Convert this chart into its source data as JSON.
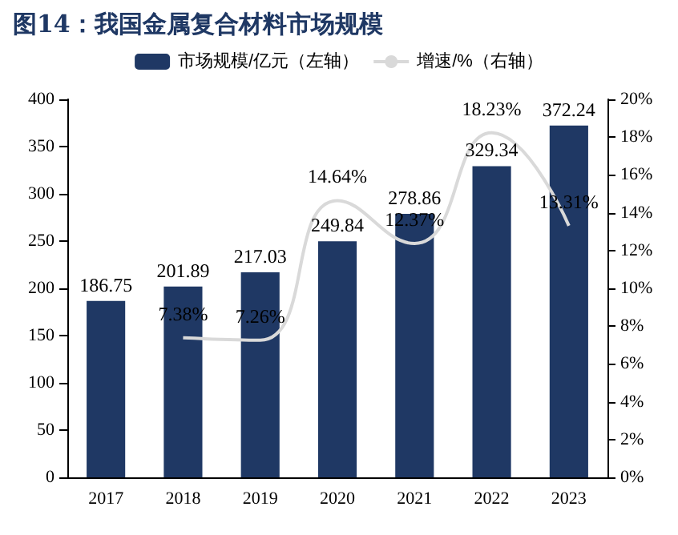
{
  "chart_data": {
    "type": "bar",
    "title": "图14：我国金属复合材料市场规模",
    "categories": [
      "2017",
      "2018",
      "2019",
      "2020",
      "2021",
      "2022",
      "2023"
    ],
    "series": [
      {
        "name": "市场规模/亿元（左轴）",
        "color": "#1f3864",
        "values": [
          186.75,
          201.89,
          217.03,
          249.84,
          278.86,
          329.34,
          372.24
        ],
        "data_labels": true
      },
      {
        "name": "增速/%（右轴）",
        "type": "line",
        "axis": "y2",
        "color": "#d9d9d9",
        "values": [
          null,
          7.38,
          7.26,
          14.64,
          12.37,
          18.23,
          13.31
        ],
        "value_labels": [
          null,
          "7.38%",
          "7.26%",
          "14.64%",
          "12.37%",
          "18.23%",
          "13.31%"
        ],
        "marker": "none"
      }
    ],
    "ylim": [
      0,
      400
    ],
    "yticks": [
      0,
      50,
      100,
      150,
      200,
      250,
      300,
      350,
      400
    ],
    "y2lim": [
      0,
      20
    ],
    "y2ticks": [
      {
        "value": 0,
        "label": "0%"
      },
      {
        "value": 2,
        "label": "2%"
      },
      {
        "value": 4,
        "label": "4%"
      },
      {
        "value": 6,
        "label": "6%"
      },
      {
        "value": 8,
        "label": "8%"
      },
      {
        "value": 10,
        "label": "10%"
      },
      {
        "value": 12,
        "label": "12%"
      },
      {
        "value": 14,
        "label": "14%"
      },
      {
        "value": 16,
        "label": "16%"
      },
      {
        "value": 18,
        "label": "18%"
      },
      {
        "value": 20,
        "label": "20%"
      }
    ],
    "grid": false,
    "legend": "top"
  }
}
